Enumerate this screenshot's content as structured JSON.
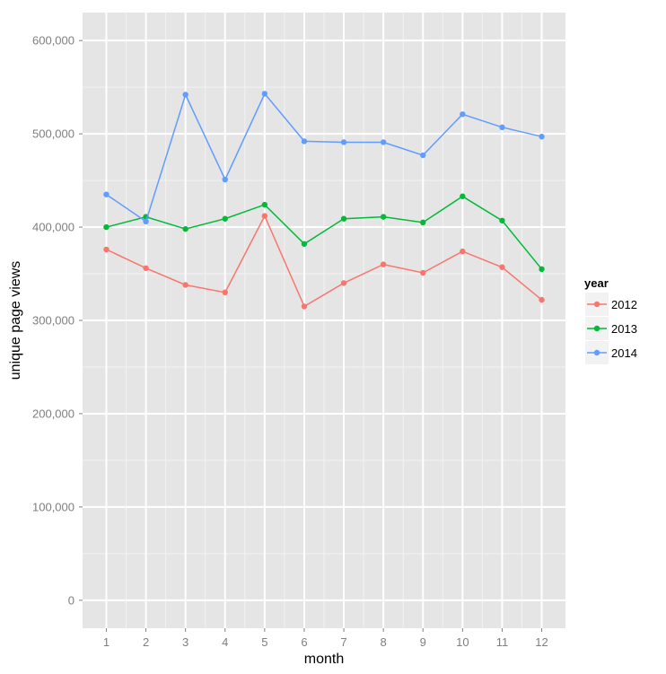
{
  "chart_data": {
    "type": "line",
    "xlabel": "month",
    "ylabel": "unique page views",
    "x": [
      1,
      2,
      3,
      4,
      5,
      6,
      7,
      8,
      9,
      10,
      11,
      12
    ],
    "x_tick_labels": [
      "1",
      "2",
      "3",
      "4",
      "5",
      "6",
      "7",
      "8",
      "9",
      "10",
      "11",
      "12"
    ],
    "y_ticks": [
      0,
      100000,
      200000,
      300000,
      400000,
      500000,
      600000
    ],
    "y_tick_labels": [
      "0",
      "100,000",
      "200,000",
      "300,000",
      "400,000",
      "500,000",
      "600,000"
    ],
    "ylim": [
      -30000,
      630000
    ],
    "xlim": [
      0.4,
      12.6
    ],
    "grid": true,
    "legend": {
      "title": "year",
      "position": "right"
    },
    "series": [
      {
        "name": "2012",
        "color": "#F8766D",
        "values": [
          376000,
          356000,
          338000,
          330000,
          412000,
          315000,
          340000,
          360000,
          351000,
          374000,
          357000,
          322000
        ]
      },
      {
        "name": "2013",
        "color": "#00BA38",
        "values": [
          400000,
          411000,
          398000,
          409000,
          424000,
          382000,
          409000,
          411000,
          405000,
          433000,
          407000,
          355000
        ]
      },
      {
        "name": "2014",
        "color": "#619CFF",
        "values": [
          435000,
          406000,
          542000,
          451000,
          543000,
          492000,
          491000,
          491000,
          477000,
          521000,
          507000,
          497000
        ]
      }
    ]
  }
}
